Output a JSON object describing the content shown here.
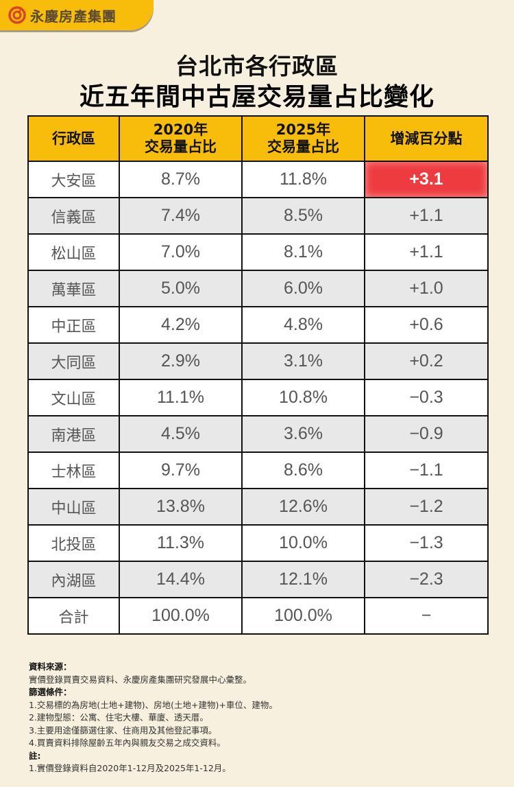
{
  "brand": {
    "name": "永慶房產集團",
    "logo_icon": "yungching-swirl-icon",
    "accent": "#f8bd0a",
    "logo_red": "#d9422b"
  },
  "title": {
    "line1": "台北市各行政區",
    "line2": "近五年間中古屋交易量占比變化"
  },
  "table": {
    "headers": [
      {
        "line1": "行政區",
        "line2": ""
      },
      {
        "line1": "2020年",
        "line2": "交易量占比"
      },
      {
        "line1": "2025年",
        "line2": "交易量占比"
      },
      {
        "line1": "增減百分點",
        "line2": ""
      }
    ],
    "rows": [
      {
        "district": "大安區",
        "y2020": "8.7%",
        "y2025": "11.8%",
        "change": "+3.1",
        "highlight": true
      },
      {
        "district": "信義區",
        "y2020": "7.4%",
        "y2025": "8.5%",
        "change": "+1.1"
      },
      {
        "district": "松山區",
        "y2020": "7.0%",
        "y2025": "8.1%",
        "change": "+1.1"
      },
      {
        "district": "萬華區",
        "y2020": "5.0%",
        "y2025": "6.0%",
        "change": "+1.0"
      },
      {
        "district": "中正區",
        "y2020": "4.2%",
        "y2025": "4.8%",
        "change": "+0.6"
      },
      {
        "district": "大同區",
        "y2020": "2.9%",
        "y2025": "3.1%",
        "change": "+0.2"
      },
      {
        "district": "文山區",
        "y2020": "11.1%",
        "y2025": "10.8%",
        "change": "−0.3"
      },
      {
        "district": "南港區",
        "y2020": "4.5%",
        "y2025": "3.6%",
        "change": "−0.9"
      },
      {
        "district": "士林區",
        "y2020": "9.7%",
        "y2025": "8.6%",
        "change": "−1.1"
      },
      {
        "district": "中山區",
        "y2020": "13.8%",
        "y2025": "12.6%",
        "change": "−1.2"
      },
      {
        "district": "北投區",
        "y2020": "11.3%",
        "y2025": "10.0%",
        "change": "−1.3"
      },
      {
        "district": "內湖區",
        "y2020": "14.4%",
        "y2025": "12.1%",
        "change": "−2.3"
      },
      {
        "district": "合計",
        "y2020": "100.0%",
        "y2025": "100.0%",
        "change": "−"
      }
    ],
    "highlight_color": "#ee3b3f"
  },
  "notes": {
    "source_heading": "資料來源：",
    "source_text": "實價登錄買賣交易資料、永慶房產集團研究發展中心彙整。",
    "filter_heading": "篩選條件：",
    "filters": [
      "1.交易標的為房地(土地+建物)、房地(土地+建物)+車位、建物。",
      "2.建物型態：公寓、住宅大樓、華廈、透天厝。",
      "3.主要用途僅篩選住家、住商用及其他登記事項。",
      "4.買賣資料排除屋齡五年內與親友交易之成交資料。"
    ],
    "remark_heading": "註:",
    "remarks": [
      "1.實價登錄資料自2020年1-12月及2025年1-12月。"
    ]
  }
}
